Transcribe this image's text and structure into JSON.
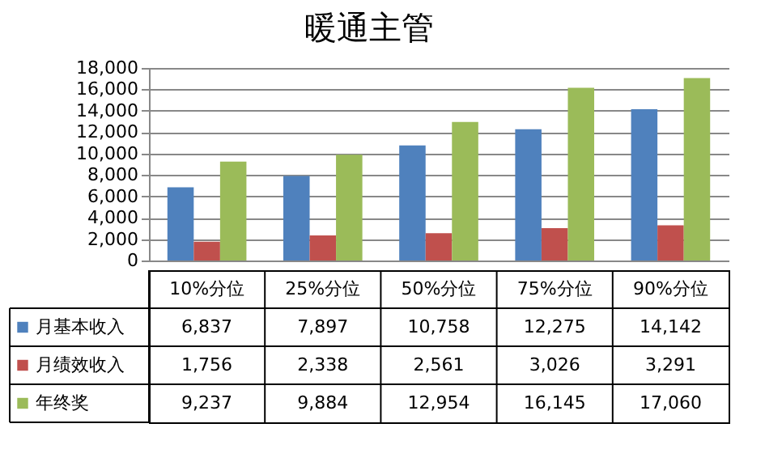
{
  "chart_data": {
    "type": "bar",
    "title": "暖通主管",
    "categories": [
      "10%分位",
      "25%分位",
      "50%分位",
      "75%分位",
      "90%分位"
    ],
    "series": [
      {
        "name": "月基本收入",
        "color": "#4f81bd",
        "values": [
          6837,
          7897,
          10758,
          12275,
          14142
        ],
        "value_labels": [
          "6,837",
          "7,897",
          "10,758",
          "12,275",
          "14,142"
        ]
      },
      {
        "name": "月绩效收入",
        "color": "#c0504d",
        "values": [
          1756,
          2338,
          2561,
          3026,
          3291
        ],
        "value_labels": [
          "1,756",
          "2,338",
          "2,561",
          "3,026",
          "3,291"
        ]
      },
      {
        "name": "年终奖",
        "color": "#9bbb59",
        "values": [
          9237,
          9884,
          12954,
          16145,
          17060
        ],
        "value_labels": [
          "9,237",
          "9,884",
          "12,954",
          "16,145",
          "17,060"
        ]
      }
    ],
    "ylim": [
      0,
      18000
    ],
    "yticks": [
      0,
      {
        "value": 2000,
        "label": "2,000"
      },
      {
        "value": 4000,
        "label": "4,000"
      },
      {
        "value": 6000,
        "label": "6,000"
      },
      {
        "value": 8000,
        "label": "8,000"
      },
      {
        "value": 10000,
        "label": "10,000"
      },
      {
        "value": 12000,
        "label": "12,000"
      },
      {
        "value": 14000,
        "label": "14,000"
      },
      {
        "value": 16000,
        "label": "16,000"
      },
      {
        "value": 18000,
        "label": "18,000"
      }
    ],
    "grid": "y",
    "legend": "bottom"
  }
}
